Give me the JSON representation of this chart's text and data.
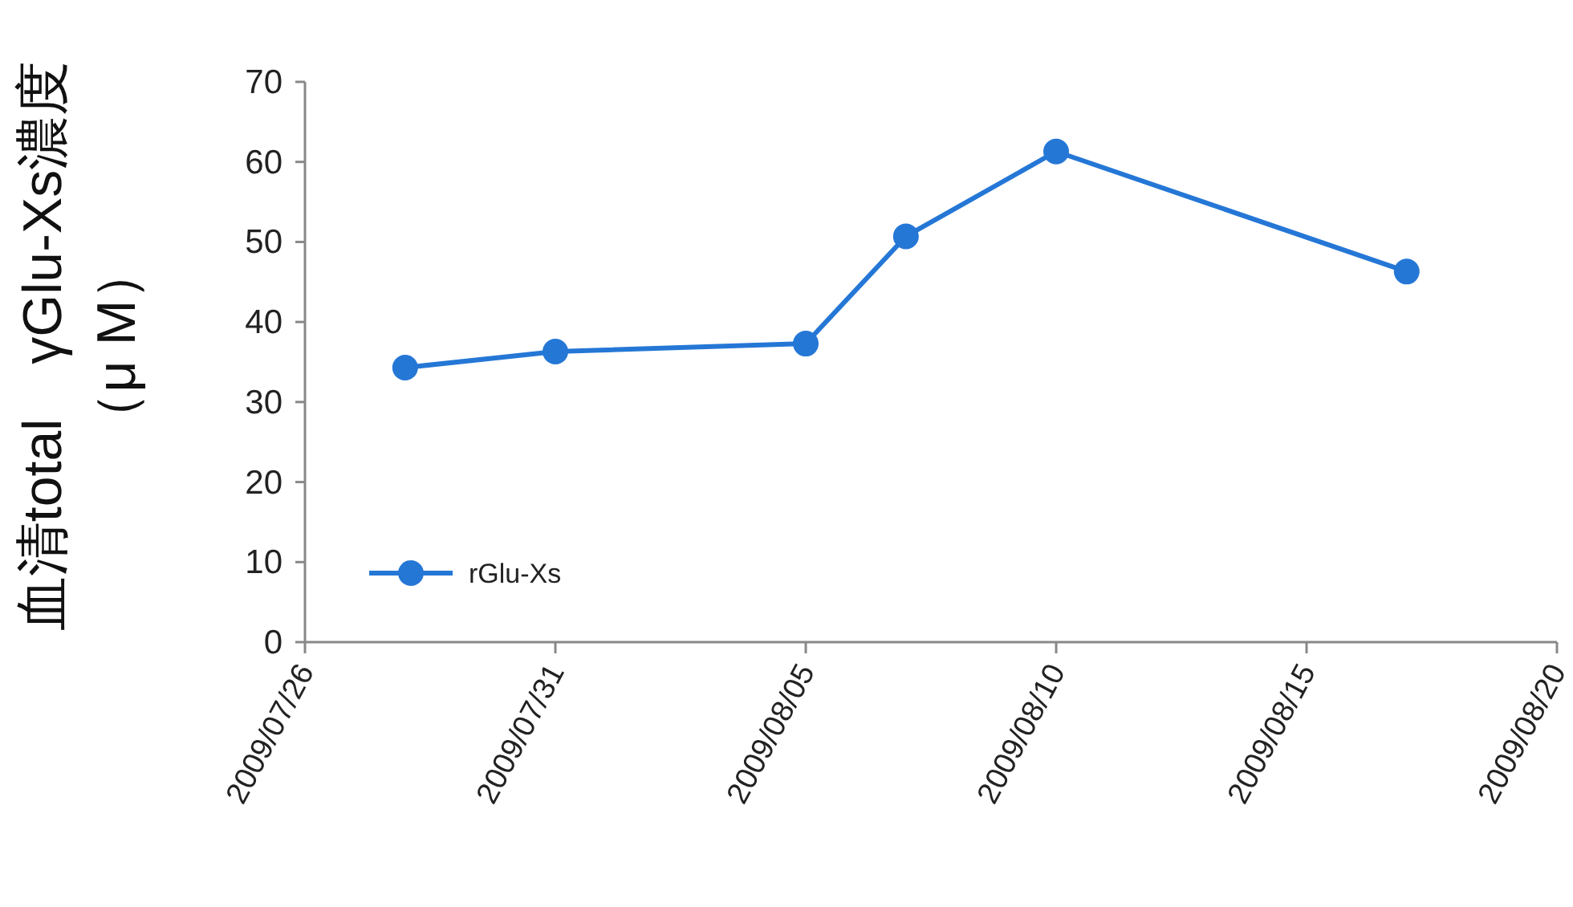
{
  "chart_data": {
    "type": "line",
    "ylabel": "血清total　γGlu-Xs濃度（μ M）",
    "x": [
      "2009-07-28",
      "2009-07-31",
      "2009-08-05",
      "2009-08-07",
      "2009-08-10",
      "2009-08-17"
    ],
    "series": [
      {
        "name": "rGlu-Xs",
        "color": "#2577d6",
        "values": [
          34.3,
          36.3,
          37.3,
          50.7,
          61.3,
          46.3
        ]
      }
    ],
    "xlim": [
      "2009-07-26",
      "2009-08-20"
    ],
    "xticks": [
      {
        "value": "2009-07-26",
        "label": "2009/07/26"
      },
      {
        "value": "2009-07-31",
        "label": "2009/07/31"
      },
      {
        "value": "2009-08-05",
        "label": "2009/08/05"
      },
      {
        "value": "2009-08-10",
        "label": "2009/08/10"
      },
      {
        "value": "2009-08-15",
        "label": "2009/08/15"
      },
      {
        "value": "2009-08-20",
        "label": "2009/08/20"
      }
    ],
    "ylim": [
      0,
      70
    ],
    "yticks": [
      0,
      10,
      20,
      30,
      40,
      50,
      60,
      70
    ],
    "grid": false,
    "legend": "bottom left",
    "marker": "circle",
    "line_style": "solid"
  }
}
